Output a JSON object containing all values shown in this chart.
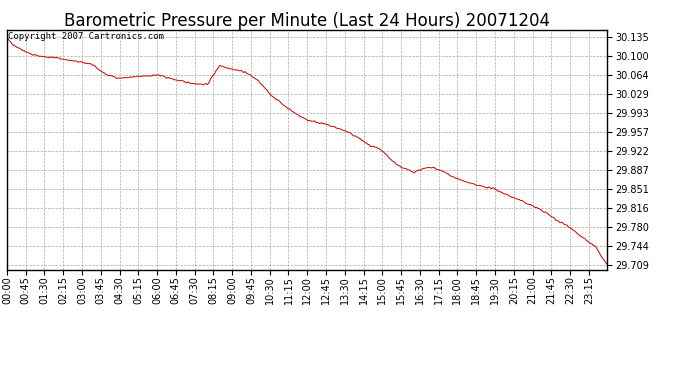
{
  "title": "Barometric Pressure per Minute (Last 24 Hours) 20071204",
  "copyright_text": "Copyright 2007 Cartronics.com",
  "line_color": "#cc0000",
  "background_color": "#ffffff",
  "grid_color": "#aaaaaa",
  "yticks": [
    29.709,
    29.744,
    29.78,
    29.816,
    29.851,
    29.887,
    29.922,
    29.957,
    29.993,
    30.029,
    30.064,
    30.1,
    30.135
  ],
  "ylim": [
    29.7,
    30.148
  ],
  "xtick_labels": [
    "00:00",
    "00:45",
    "01:30",
    "02:15",
    "03:00",
    "03:45",
    "04:30",
    "05:15",
    "06:00",
    "06:45",
    "07:30",
    "08:15",
    "09:00",
    "09:45",
    "10:30",
    "11:15",
    "12:00",
    "12:45",
    "13:30",
    "14:15",
    "15:00",
    "15:45",
    "16:30",
    "17:15",
    "18:00",
    "18:45",
    "19:30",
    "20:15",
    "21:00",
    "21:45",
    "22:30",
    "23:15"
  ],
  "title_fontsize": 12,
  "tick_fontsize": 7,
  "copyright_fontsize": 6.5,
  "keypoints_x": [
    0,
    5,
    20,
    60,
    90,
    120,
    160,
    200,
    240,
    270,
    300,
    330,
    360,
    390,
    420,
    450,
    480,
    510,
    540,
    570,
    600,
    630,
    660,
    690,
    720,
    750,
    780,
    810,
    840,
    855,
    870,
    885,
    900,
    915,
    930,
    945,
    960,
    975,
    990,
    1005,
    1020,
    1035,
    1050,
    1080,
    1110,
    1125,
    1155,
    1170,
    1200,
    1230,
    1260,
    1290,
    1305,
    1320,
    1350,
    1380,
    1410,
    1439
  ],
  "keypoints_y": [
    30.135,
    30.128,
    30.118,
    30.102,
    30.098,
    30.096,
    30.09,
    30.085,
    30.064,
    30.058,
    30.06,
    30.062,
    30.064,
    30.058,
    30.052,
    30.048,
    30.046,
    30.082,
    30.075,
    30.07,
    30.055,
    30.029,
    30.01,
    29.993,
    29.98,
    29.975,
    29.968,
    29.96,
    29.948,
    29.94,
    29.932,
    29.928,
    29.922,
    29.91,
    29.9,
    29.892,
    29.887,
    29.883,
    29.887,
    29.89,
    29.891,
    29.887,
    29.882,
    29.87,
    29.862,
    29.858,
    29.854,
    29.851,
    29.84,
    29.83,
    29.82,
    29.808,
    29.8,
    29.792,
    29.78,
    29.76,
    29.744,
    29.709
  ]
}
